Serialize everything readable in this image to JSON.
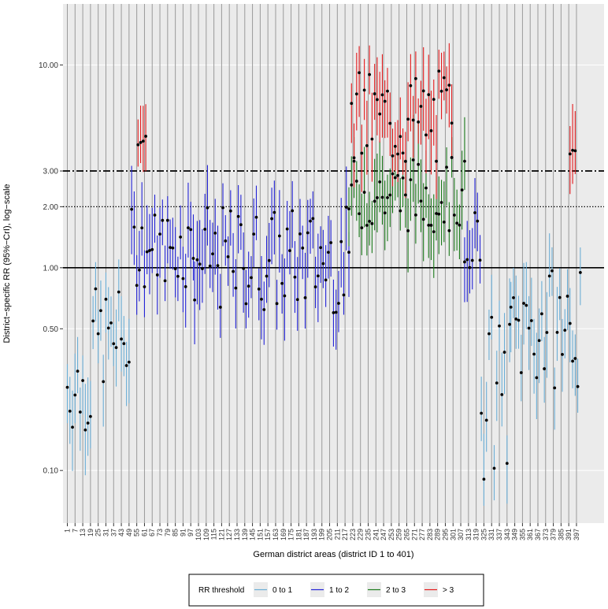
{
  "chart_data": {
    "type": "scatter",
    "title": "",
    "xlabel": "German district areas (district ID 1 to 401)",
    "ylabel": "District−specific RR (95%−CrI), log−scale",
    "y_scale": "log",
    "ylim": [
      0.055,
      20
    ],
    "xlim": [
      1,
      401
    ],
    "y_ticks": [
      {
        "value": 0.1,
        "label": "0.10"
      },
      {
        "value": 0.5,
        "label": "0.50"
      },
      {
        "value": 1.0,
        "label": "1.00"
      },
      {
        "value": 2.0,
        "label": "2.00"
      },
      {
        "value": 3.0,
        "label": "3.00"
      },
      {
        "value": 10.0,
        "label": "10.00"
      }
    ],
    "x_ticks": [
      1,
      7,
      13,
      19,
      25,
      31,
      37,
      43,
      49,
      55,
      61,
      67,
      73,
      79,
      85,
      91,
      97,
      103,
      109,
      115,
      121,
      127,
      133,
      139,
      145,
      151,
      157,
      163,
      169,
      175,
      181,
      187,
      193,
      199,
      205,
      211,
      217,
      223,
      229,
      235,
      241,
      247,
      253,
      259,
      265,
      271,
      277,
      283,
      289,
      295,
      301,
      307,
      313,
      319,
      325,
      331,
      337,
      343,
      349,
      355,
      361,
      367,
      373,
      379,
      385,
      391,
      397
    ],
    "reference_lines": [
      {
        "value": 1.0,
        "style": "solid"
      },
      {
        "value": 2.0,
        "style": "dotted"
      },
      {
        "value": 3.0,
        "style": "dashdot"
      }
    ],
    "legend": {
      "title": "RR threshold",
      "position": "bottom",
      "entries": [
        {
          "label": "0 to 1",
          "color": "#6baed6"
        },
        {
          "label": "1 to 2",
          "color": "#2323d6"
        },
        {
          "label": "2 to 3",
          "color": "#1b7a1b"
        },
        {
          "label": "> 3",
          "color": "#e41a1c"
        }
      ]
    },
    "point_color": "#000000",
    "segments": [
      {
        "x_range": [
          1,
          20
        ],
        "rr_range": [
          0.15,
          0.45
        ],
        "category": "0 to 1"
      },
      {
        "x_range": [
          21,
          50
        ],
        "rr_range": [
          0.25,
          0.8
        ],
        "category": "0 to 1"
      },
      {
        "x_range": [
          51,
          100
        ],
        "rr_range": [
          0.8,
          2.0
        ],
        "category": "1 to 2"
      },
      {
        "x_range": [
          56,
          62
        ],
        "rr_range": [
          4.0,
          4.5
        ],
        "category": "> 3"
      },
      {
        "x_range": [
          100,
          220
        ],
        "rr_range": [
          0.6,
          2.0
        ],
        "category": "1 to 2"
      },
      {
        "x_range": [
          220,
          310
        ],
        "rr_range": [
          1.5,
          3.5
        ],
        "category": "2 to 3"
      },
      {
        "x_range": [
          222,
          300
        ],
        "rr_range": [
          3.0,
          9.5
        ],
        "category": "> 3"
      },
      {
        "x_range": [
          310,
          322
        ],
        "rr_range": [
          1.0,
          2.0
        ],
        "category": "1 to 2"
      },
      {
        "x_range": [
          323,
          345
        ],
        "rr_range": [
          0.09,
          0.6
        ],
        "category": "0 to 1"
      },
      {
        "x_range": [
          346,
          401
        ],
        "rr_range": [
          0.25,
          1.0
        ],
        "category": "0 to 1"
      },
      {
        "x_range": [
          392,
          396
        ],
        "rr_range": [
          3.5,
          3.8
        ],
        "category": "> 3"
      }
    ]
  }
}
